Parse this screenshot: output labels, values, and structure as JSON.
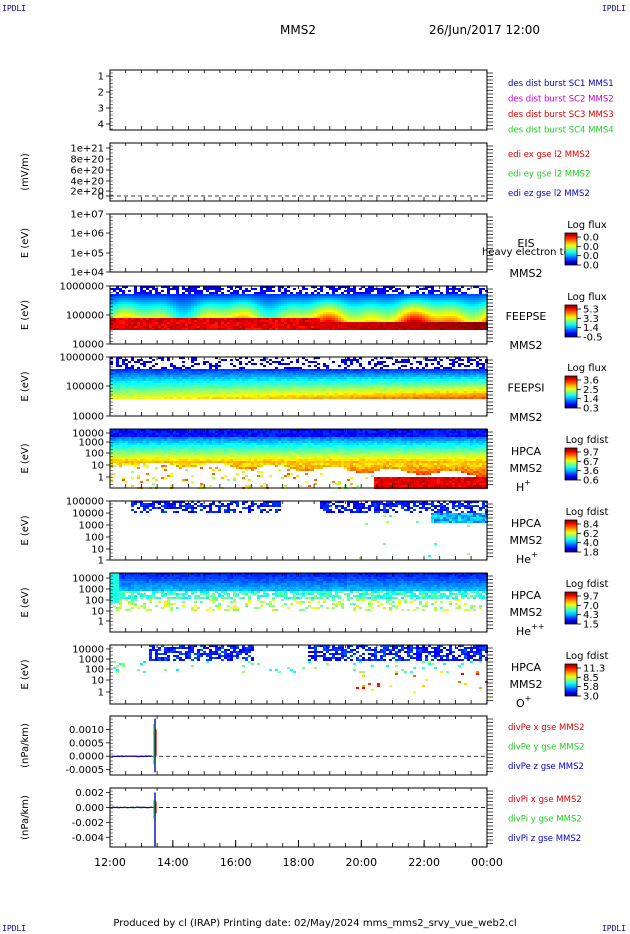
{
  "header": {
    "corner_left": "IPDLI",
    "corner_right": "IPDLI",
    "bottom_left": "IPDLI",
    "bottom_right": "IPDLI",
    "spacecraft": "MMS2",
    "datetime": "26/Jun/2017 12:00"
  },
  "footer": {
    "text": "Produced by cl (IRAP)   Printing date: 02/May/2024   mms_mms2_srvy_vue_web2.cl"
  },
  "colors": {
    "blue": "#0000cc",
    "red": "#dd0000",
    "green": "#22cc22",
    "magenta": "#cc00cc"
  },
  "chart_data": [
    {
      "type": "line",
      "id": "dist-burst",
      "ylim": [
        0.5,
        4.5
      ],
      "yticks": [
        "1",
        "2",
        "3",
        "4"
      ],
      "legend": [
        {
          "text": "des dist burst SC1 MMS1",
          "color": "#0000cc"
        },
        {
          "text": "des dist burst SC2 MMS2",
          "color": "#cc00cc"
        },
        {
          "text": "des dist burst SC3 MMS3",
          "color": "#dd0000"
        },
        {
          "text": "des dist burst SC4 MMS4",
          "color": "#22cc22"
        }
      ]
    },
    {
      "type": "line",
      "id": "edi-e",
      "ylabel": "(mV/m)",
      "yticks": [
        "1e+21",
        "8e+20",
        "6e+20",
        "4e+20",
        "2e+20",
        "0"
      ],
      "legend": [
        {
          "text": "edi ex gse l2 MMS2",
          "color": "#dd0000"
        },
        {
          "text": "edi ey gse l2 MMS2",
          "color": "#22cc22"
        },
        {
          "text": "edi ez gse l2 MMS2",
          "color": "#0000cc"
        }
      ]
    },
    {
      "type": "heatmap",
      "id": "eis",
      "ylabel": "E (eV)",
      "yticks": [
        "1e+07",
        "1e+06",
        "1e+05",
        "1e+04"
      ],
      "instrument": "EIS",
      "spacecraft": "MMS2",
      "overlay_text": "heavy electron to",
      "colorbar": {
        "title": "Log flux",
        "ticks": [
          "0.0",
          "0.0",
          "0.0",
          "0.0"
        ]
      }
    },
    {
      "type": "heatmap",
      "id": "feepse",
      "ylabel": "E (eV)",
      "yticks": [
        "1000000",
        "100000",
        "10000"
      ],
      "instrument": "FEEPSE",
      "spacecraft": "MMS2",
      "colorbar": {
        "title": "Log flux",
        "ticks": [
          "5.3",
          "3.3",
          "1.4",
          "-0.5"
        ]
      }
    },
    {
      "type": "heatmap",
      "id": "feepsi",
      "ylabel": "E (eV)",
      "yticks": [
        "1000000",
        "100000",
        "10000"
      ],
      "instrument": "FEEPSI",
      "spacecraft": "MMS2",
      "colorbar": {
        "title": "Log flux",
        "ticks": [
          "3.6",
          "2.5",
          "1.4",
          "0.3"
        ]
      }
    },
    {
      "type": "heatmap",
      "id": "hpca-h",
      "ylabel": "E (eV)",
      "yticks": [
        "10000",
        "1000",
        "100",
        "10",
        "1"
      ],
      "instrument": "HPCA",
      "spacecraft": "MMS2",
      "species": "H",
      "species_sup": "+",
      "colorbar": {
        "title": "Log fdist",
        "ticks": [
          "9.7",
          "6.7",
          "3.6",
          "0.6"
        ]
      }
    },
    {
      "type": "heatmap",
      "id": "hpca-he",
      "ylabel": "E (eV)",
      "yticks": [
        "100000",
        "10000",
        "1000",
        "100",
        "10",
        "1"
      ],
      "instrument": "HPCA",
      "spacecraft": "MMS2",
      "species": "He",
      "species_sup": "+",
      "colorbar": {
        "title": "Log fdist",
        "ticks": [
          "8.4",
          "6.2",
          "4.0",
          "1.8"
        ]
      }
    },
    {
      "type": "heatmap",
      "id": "hpca-hepp",
      "ylabel": "E (eV)",
      "yticks": [
        "10000",
        "1000",
        "100",
        "10",
        "1"
      ],
      "instrument": "HPCA",
      "spacecraft": "MMS2",
      "species": "He",
      "species_sup": "++",
      "colorbar": {
        "title": "Log fdist",
        "ticks": [
          "9.7",
          "7.0",
          "4.3",
          "1.5"
        ]
      }
    },
    {
      "type": "heatmap",
      "id": "hpca-o",
      "ylabel": "E (eV)",
      "yticks": [
        "10000",
        "1000",
        "100",
        "10",
        "1"
      ],
      "instrument": "HPCA",
      "spacecraft": "MMS2",
      "species": "O",
      "species_sup": "+",
      "colorbar": {
        "title": "Log fdist",
        "ticks": [
          "11.3",
          "8.5",
          "5.8",
          "3.0"
        ]
      }
    },
    {
      "type": "line",
      "id": "divpe",
      "ylabel": "(nPa/km)",
      "ylim": [
        -0.0007,
        0.0015
      ],
      "yticks": [
        "0.0010",
        "0.0005",
        "0.0000",
        "-0.0005"
      ],
      "ytick_values": [
        0.001,
        0.0005,
        0.0,
        -0.0005
      ],
      "legend": [
        {
          "text": "divPe x gse MMS2",
          "color": "#dd0000"
        },
        {
          "text": "divPe y gse MMS2",
          "color": "#22cc22"
        },
        {
          "text": "divPe z gse MMS2",
          "color": "#0000cc"
        }
      ]
    },
    {
      "type": "line",
      "id": "divpi",
      "ylabel": "(nPa/km)",
      "ylim": [
        -0.0053,
        0.0026
      ],
      "yticks": [
        "0.002",
        "0.000",
        "-0.002",
        "-0.004"
      ],
      "ytick_values": [
        0.002,
        0.0,
        -0.002,
        -0.004
      ],
      "legend": [
        {
          "text": "divPi x gse MMS2",
          "color": "#dd0000"
        },
        {
          "text": "divPi y gse MMS2",
          "color": "#22cc22"
        },
        {
          "text": "divPi z gse MMS2",
          "color": "#0000cc"
        }
      ]
    }
  ],
  "xaxis": {
    "ticks": [
      "12:00",
      "14:00",
      "16:00",
      "18:00",
      "20:00",
      "22:00",
      "00:00"
    ]
  }
}
